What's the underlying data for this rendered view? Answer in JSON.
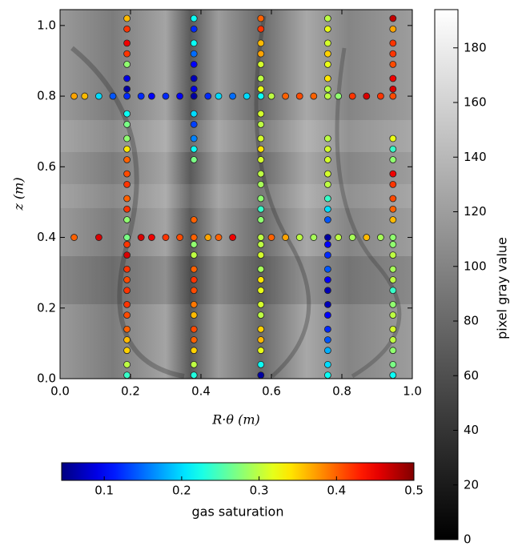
{
  "chart_data": {
    "type": "scatter",
    "xlabel": "R·θ (m)",
    "ylabel": "z (m)",
    "xlim": [
      0,
      1
    ],
    "ylim": [
      0,
      1.045
    ],
    "xticks": [
      {
        "value": 0,
        "label": "0.0"
      },
      {
        "value": 0.2,
        "label": "0.2"
      },
      {
        "value": 0.4,
        "label": "0.4"
      },
      {
        "value": 0.6,
        "label": "0.6"
      },
      {
        "value": 0.8,
        "label": "0.8"
      },
      {
        "value": 1,
        "label": "1.0"
      }
    ],
    "yticks": [
      {
        "value": 0,
        "label": "0.0"
      },
      {
        "value": 0.2,
        "label": "0.2"
      },
      {
        "value": 0.4,
        "label": "0.4"
      },
      {
        "value": 0.6,
        "label": "0.6"
      },
      {
        "value": 0.8,
        "label": "0.8"
      },
      {
        "value": 1,
        "label": "1.0"
      }
    ],
    "colormap": "jet",
    "series": [
      {
        "x": [
          0.19,
          0.19,
          0.19,
          0.19,
          0.19,
          0.19,
          0.19,
          0.19,
          0.19,
          0.19,
          0.19,
          0.19,
          0.19,
          0.19,
          0.19,
          0.19,
          0.19,
          0.19,
          0.19,
          0.19,
          0.19,
          0.19,
          0.19,
          0.19,
          0.19,
          0.19,
          0.19,
          0.19,
          0.19
        ],
        "y": [
          0.01,
          0.04,
          0.08,
          0.11,
          0.14,
          0.18,
          0.21,
          0.25,
          0.28,
          0.31,
          0.35,
          0.38,
          0.45,
          0.48,
          0.51,
          0.55,
          0.58,
          0.62,
          0.65,
          0.68,
          0.72,
          0.75,
          0.82,
          0.85,
          0.89,
          0.92,
          0.95,
          0.99,
          1.02
        ],
        "values": [
          0.24,
          0.3,
          0.35,
          0.36,
          0.4,
          0.41,
          0.42,
          0.42,
          0.41,
          0.42,
          0.46,
          0.42,
          0.28,
          0.42,
          0.4,
          0.42,
          0.41,
          0.4,
          0.34,
          0.28,
          0.27,
          0.22,
          0.06,
          0.09,
          0.28,
          0.42,
          0.45,
          0.42,
          0.36
        ]
      },
      {
        "x": [
          0.38,
          0.38,
          0.38,
          0.38,
          0.38,
          0.38,
          0.38,
          0.38,
          0.38,
          0.38,
          0.38,
          0.38,
          0.38,
          0.38,
          0.38,
          0.38,
          0.38,
          0.38,
          0.38,
          0.38,
          0.38,
          0.38,
          0.38,
          0.38,
          0.38
        ],
        "y": [
          0.01,
          0.04,
          0.08,
          0.11,
          0.14,
          0.18,
          0.21,
          0.25,
          0.28,
          0.31,
          0.35,
          0.38,
          0.45,
          0.62,
          0.65,
          0.68,
          0.72,
          0.75,
          0.82,
          0.85,
          0.89,
          0.92,
          0.95,
          0.99,
          1.02
        ],
        "values": [
          0.23,
          0.3,
          0.35,
          0.4,
          0.41,
          0.36,
          0.39,
          0.41,
          0.42,
          0.4,
          0.3,
          0.28,
          0.4,
          0.27,
          0.22,
          0.16,
          0.13,
          0.2,
          0.09,
          0.07,
          0.1,
          0.15,
          0.22,
          0.12,
          0.22
        ]
      },
      {
        "x": [
          0.57,
          0.57,
          0.57,
          0.57,
          0.57,
          0.57,
          0.57,
          0.57,
          0.57,
          0.57,
          0.57,
          0.57,
          0.57,
          0.57,
          0.57,
          0.57,
          0.57,
          0.57,
          0.57,
          0.57,
          0.57,
          0.57,
          0.57,
          0.57,
          0.57,
          0.57,
          0.57,
          0.57,
          0.57
        ],
        "y": [
          0.01,
          0.04,
          0.08,
          0.11,
          0.14,
          0.18,
          0.21,
          0.25,
          0.28,
          0.31,
          0.35,
          0.38,
          0.45,
          0.48,
          0.51,
          0.55,
          0.58,
          0.62,
          0.65,
          0.68,
          0.72,
          0.75,
          0.82,
          0.85,
          0.89,
          0.92,
          0.95,
          0.99,
          1.02
        ],
        "values": [
          0.06,
          0.22,
          0.32,
          0.36,
          0.35,
          0.3,
          0.31,
          0.32,
          0.34,
          0.29,
          0.31,
          0.3,
          0.28,
          0.24,
          0.28,
          0.29,
          0.3,
          0.31,
          0.34,
          0.31,
          0.3,
          0.31,
          0.32,
          0.3,
          0.31,
          0.37,
          0.36,
          0.42,
          0.4
        ]
      },
      {
        "x": [
          0.76,
          0.76,
          0.76,
          0.76,
          0.76,
          0.76,
          0.76,
          0.76,
          0.76,
          0.76,
          0.76,
          0.76,
          0.76,
          0.76,
          0.76,
          0.76,
          0.76,
          0.76,
          0.76,
          0.76,
          0.76,
          0.76,
          0.76,
          0.76,
          0.76,
          0.76,
          0.76
        ],
        "y": [
          0.01,
          0.04,
          0.08,
          0.11,
          0.14,
          0.18,
          0.21,
          0.25,
          0.28,
          0.31,
          0.35,
          0.38,
          0.45,
          0.48,
          0.51,
          0.55,
          0.58,
          0.62,
          0.65,
          0.68,
          0.82,
          0.85,
          0.89,
          0.92,
          0.95,
          0.99,
          1.02
        ],
        "values": [
          0.22,
          0.2,
          0.18,
          0.14,
          0.12,
          0.1,
          0.07,
          0.07,
          0.1,
          0.14,
          0.12,
          0.1,
          0.14,
          0.2,
          0.24,
          0.3,
          0.31,
          0.31,
          0.31,
          0.3,
          0.3,
          0.34,
          0.32,
          0.35,
          0.31,
          0.32,
          0.3
        ]
      },
      {
        "x": [
          0.945,
          0.945,
          0.945,
          0.945,
          0.945,
          0.945,
          0.945,
          0.945,
          0.945,
          0.945,
          0.945,
          0.945,
          0.945,
          0.945,
          0.945,
          0.945,
          0.945,
          0.945,
          0.945,
          0.945,
          0.945,
          0.945,
          0.945,
          0.945,
          0.945,
          0.945,
          0.945
        ],
        "y": [
          0.01,
          0.04,
          0.08,
          0.11,
          0.14,
          0.18,
          0.21,
          0.25,
          0.28,
          0.31,
          0.35,
          0.38,
          0.45,
          0.48,
          0.51,
          0.55,
          0.58,
          0.62,
          0.65,
          0.68,
          0.82,
          0.85,
          0.89,
          0.92,
          0.95,
          0.99,
          1.02
        ],
        "values": [
          0.22,
          0.27,
          0.28,
          0.3,
          0.31,
          0.3,
          0.28,
          0.24,
          0.3,
          0.29,
          0.3,
          0.28,
          0.36,
          0.4,
          0.41,
          0.42,
          0.45,
          0.28,
          0.24,
          0.32,
          0.46,
          0.45,
          0.41,
          0.42,
          0.42,
          0.37,
          0.47
        ]
      },
      {
        "x": [
          0.04,
          0.07,
          0.11,
          0.15,
          0.19,
          0.23,
          0.26,
          0.3,
          0.34,
          0.38,
          0.42,
          0.45,
          0.49,
          0.53,
          0.57,
          0.6,
          0.64,
          0.68,
          0.72,
          0.76,
          0.79,
          0.83,
          0.87,
          0.91,
          0.945
        ],
        "y": [
          0.8,
          0.8,
          0.8,
          0.8,
          0.8,
          0.8,
          0.8,
          0.8,
          0.8,
          0.8,
          0.8,
          0.8,
          0.8,
          0.8,
          0.8,
          0.8,
          0.8,
          0.8,
          0.8,
          0.8,
          0.8,
          0.8,
          0.8,
          0.8,
          0.8
        ],
        "values": [
          0.37,
          0.36,
          0.2,
          0.14,
          0.12,
          0.12,
          0.1,
          0.12,
          0.1,
          0.06,
          0.12,
          0.2,
          0.15,
          0.2,
          0.22,
          0.3,
          0.4,
          0.41,
          0.4,
          0.3,
          0.28,
          0.42,
          0.46,
          0.42,
          0.41
        ]
      },
      {
        "x": [
          0.04,
          0.11,
          0.19,
          0.23,
          0.26,
          0.3,
          0.34,
          0.38,
          0.42,
          0.45,
          0.49,
          0.57,
          0.6,
          0.64,
          0.68,
          0.72,
          0.76,
          0.79,
          0.83,
          0.87,
          0.91,
          0.945
        ],
        "y": [
          0.4,
          0.4,
          0.4,
          0.4,
          0.4,
          0.4,
          0.4,
          0.4,
          0.4,
          0.4,
          0.4,
          0.4,
          0.4,
          0.4,
          0.4,
          0.4,
          0.4,
          0.4,
          0.4,
          0.4,
          0.4,
          0.4
        ],
        "values": [
          0.4,
          0.46,
          0.27,
          0.46,
          0.45,
          0.42,
          0.41,
          0.4,
          0.37,
          0.4,
          0.45,
          0.3,
          0.4,
          0.37,
          0.3,
          0.29,
          0.06,
          0.3,
          0.29,
          0.36,
          0.29,
          0.28
        ]
      }
    ],
    "colorbar": {
      "label": "gas saturation",
      "lim": [
        0.045,
        0.5
      ],
      "ticks": [
        0.1,
        0.2,
        0.3,
        0.4,
        0.5
      ]
    },
    "background_colorbar": {
      "label": "pixel gray value",
      "colormap": "gray",
      "lim": [
        0,
        194
      ],
      "ticks": [
        0,
        20,
        40,
        60,
        80,
        100,
        120,
        140,
        160,
        180
      ]
    }
  }
}
